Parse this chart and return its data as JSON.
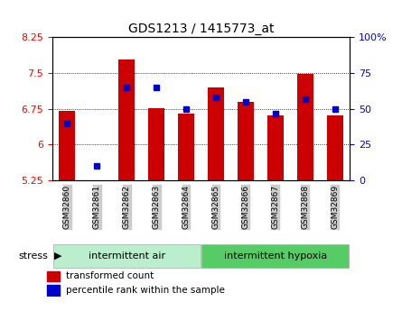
{
  "title": "GDS1213 / 1415773_at",
  "samples": [
    "GSM32860",
    "GSM32861",
    "GSM32862",
    "GSM32863",
    "GSM32864",
    "GSM32865",
    "GSM32866",
    "GSM32867",
    "GSM32868",
    "GSM32869"
  ],
  "transformed_count": [
    6.7,
    5.22,
    7.78,
    6.77,
    6.65,
    7.2,
    6.9,
    6.62,
    7.48,
    6.62
  ],
  "percentile_rank": [
    40,
    10,
    65,
    65,
    50,
    58,
    55,
    47,
    57,
    50
  ],
  "bar_bottom": 5.25,
  "ylim_left": [
    5.25,
    8.25
  ],
  "ylim_right": [
    0,
    100
  ],
  "yticks_left": [
    5.25,
    6.0,
    6.75,
    7.5,
    8.25
  ],
  "yticks_left_labels": [
    "5.25",
    "6",
    "6.75",
    "7.5",
    "8.25"
  ],
  "yticks_right": [
    0,
    25,
    50,
    75,
    100
  ],
  "yticks_right_labels": [
    "0",
    "25",
    "50",
    "75",
    "100%"
  ],
  "bar_color": "#cc0000",
  "marker_color": "#0000cc",
  "group1_label": "intermittent air",
  "group2_label": "intermittent hypoxia",
  "group1_color": "#bbeecc",
  "group2_color": "#55cc66",
  "stress_label": "stress",
  "group1_samples": [
    0,
    1,
    2,
    3,
    4
  ],
  "group2_samples": [
    5,
    6,
    7,
    8,
    9
  ],
  "legend_red_label": "transformed count",
  "legend_blue_label": "percentile rank within the sample",
  "background_color": "#ffffff"
}
